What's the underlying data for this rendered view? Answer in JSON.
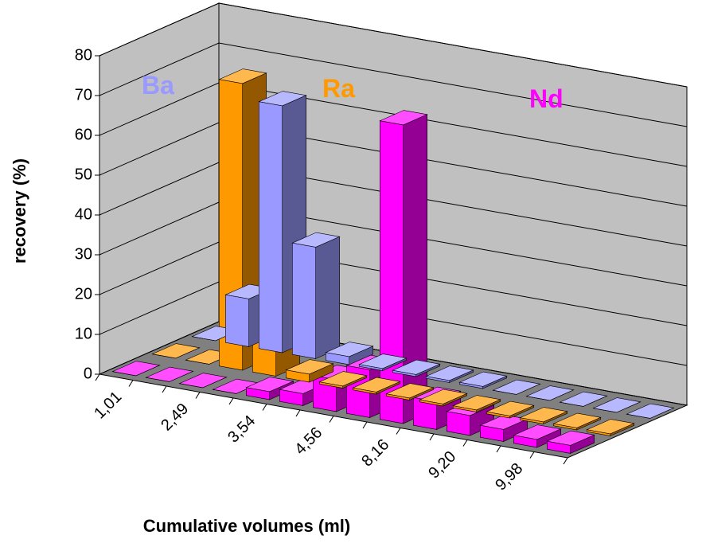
{
  "chart_data": {
    "type": "bar3d",
    "ylabel": "recovery (%)",
    "xlabel": "Cumulative volumes (ml)",
    "categories": [
      "1,01",
      null,
      "2,49",
      null,
      "3,54",
      null,
      "4,56",
      null,
      "8,16",
      null,
      "9,20",
      null,
      "9,98",
      null
    ],
    "ylim": [
      0,
      80
    ],
    "yticks": [
      0,
      10,
      20,
      30,
      40,
      50,
      60,
      70,
      80
    ],
    "grid": true,
    "series": [
      {
        "name": "Ba",
        "color": "#9999ff",
        "values": [
          0,
          12,
          62,
          28,
          2,
          0.5,
          0.5,
          0.5,
          0.5,
          0,
          0,
          0,
          0,
          0
        ]
      },
      {
        "name": "Ra",
        "color": "#ff9900",
        "values": [
          0,
          0,
          72,
          21,
          2,
          0.5,
          0.5,
          0.5,
          0.5,
          0.5,
          0.5,
          0.5,
          0.5,
          0.5
        ]
      },
      {
        "name": "Nd",
        "color": "#ff00ff",
        "values": [
          0,
          0,
          0,
          0,
          2,
          3,
          8,
          12,
          75,
          7,
          5,
          3,
          2,
          2
        ]
      }
    ]
  }
}
